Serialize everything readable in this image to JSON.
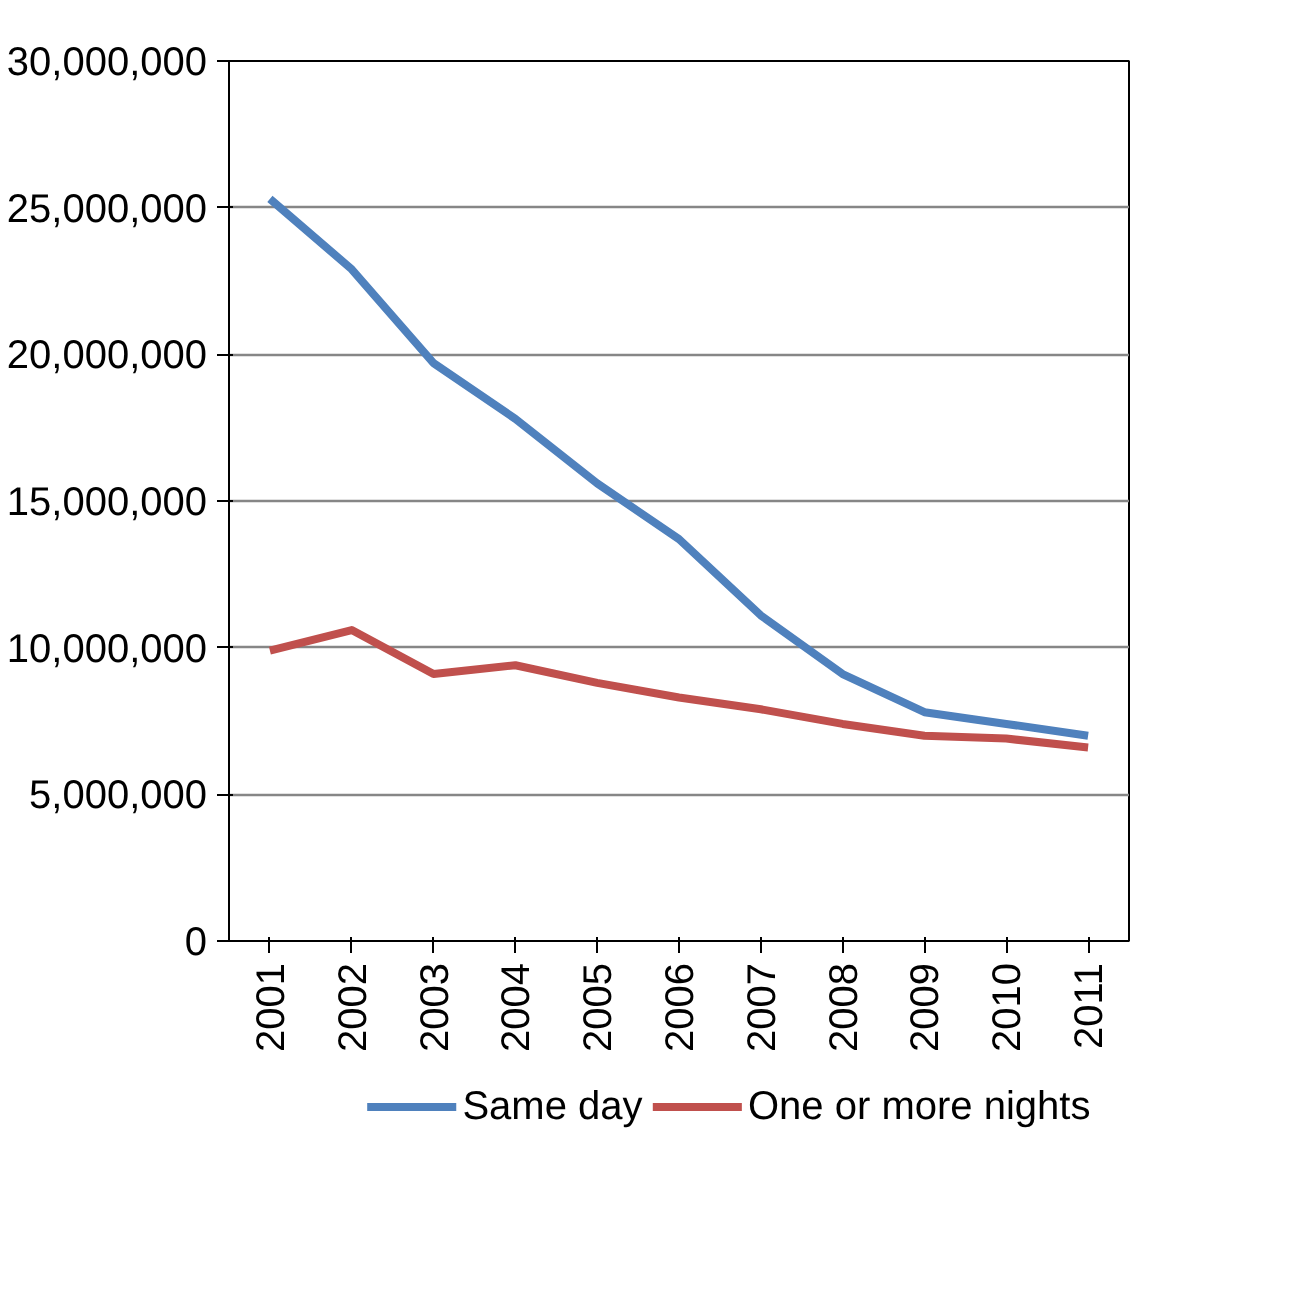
{
  "chart_data": {
    "type": "line",
    "categories": [
      "2001",
      "2002",
      "2003",
      "2004",
      "2005",
      "2006",
      "2007",
      "2008",
      "2009",
      "2010",
      "2011"
    ],
    "series": [
      {
        "name": "Same day",
        "color": "#4f81bd",
        "values": [
          25300000,
          22900000,
          19700000,
          17800000,
          15600000,
          13700000,
          11100000,
          9100000,
          7800000,
          7400000,
          7000000
        ]
      },
      {
        "name": "One or more nights",
        "color": "#c0504d",
        "values": [
          9900000,
          10600000,
          9100000,
          9400000,
          8800000,
          8300000,
          7900000,
          7400000,
          7000000,
          6900000,
          6600000
        ]
      }
    ],
    "ylim": [
      0,
      30000000
    ],
    "yticks": [
      0,
      {
        "value": 5000000,
        "label": "5,000,000"
      },
      {
        "value": 10000000,
        "label": "10,000,000"
      },
      {
        "value": 15000000,
        "label": "15,000,000"
      },
      {
        "value": 20000000,
        "label": "20,000,000"
      },
      {
        "value": 25000000,
        "label": "25,000,000"
      },
      {
        "value": 30000000,
        "label": "30,000,000"
      }
    ],
    "grid": "y",
    "legend": "bottom",
    "marker": "none",
    "line_style": "solid"
  }
}
